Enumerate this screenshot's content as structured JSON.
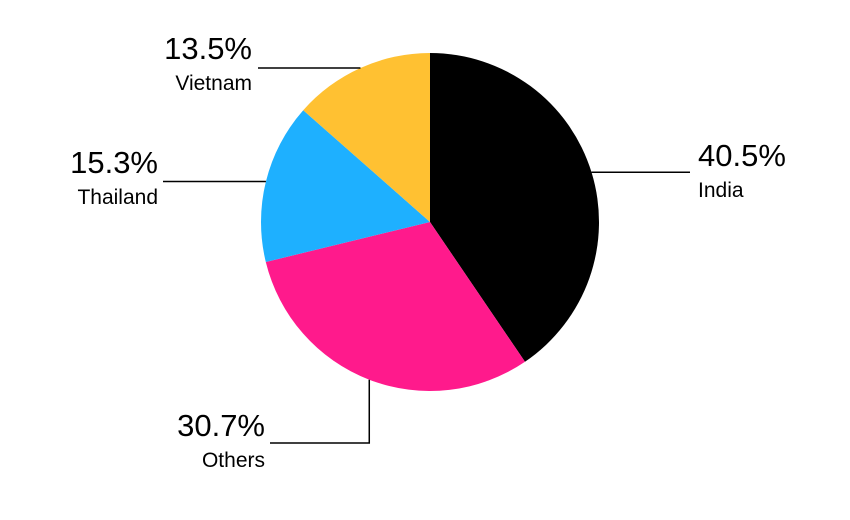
{
  "chart_data": {
    "type": "pie",
    "categories": [
      "India",
      "Others",
      "Thailand",
      "Vietnam"
    ],
    "values": [
      40.5,
      30.7,
      15.3,
      13.5
    ],
    "value_labels": [
      "40.5%",
      "30.7%",
      "15.3%",
      "13.5%"
    ],
    "colors": [
      "#000000",
      "#ff1a8c",
      "#1eb0ff",
      "#ffc132"
    ]
  }
}
